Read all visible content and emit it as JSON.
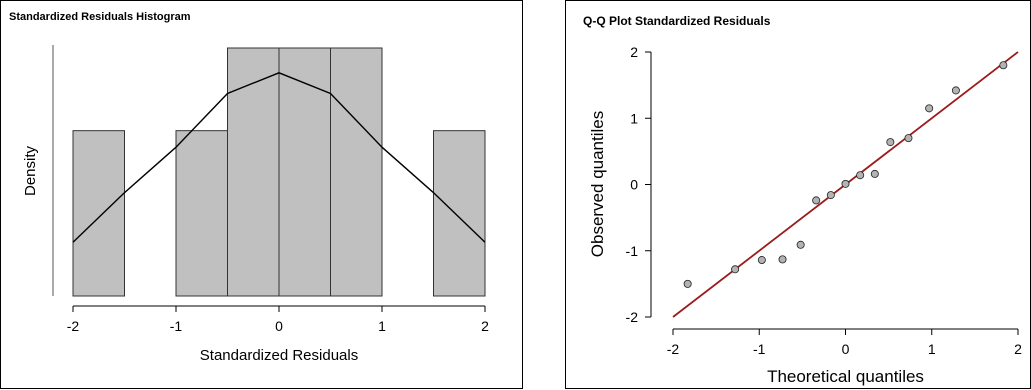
{
  "chart_data": [
    {
      "type": "bar",
      "title": "Standardized Residuals Histogram",
      "xlabel": "Standardized Residuals",
      "ylabel": "Density",
      "xlim": [
        -2,
        2
      ],
      "ylim": [
        0,
        0.6
      ],
      "x_ticks": [
        "-2",
        "-1",
        "0",
        "1",
        "2"
      ],
      "bins": [
        {
          "x0": -2.0,
          "x1": -1.5,
          "density": 0.4
        },
        {
          "x0": -1.5,
          "x1": -1.0,
          "density": 0.0
        },
        {
          "x0": -1.0,
          "x1": -0.5,
          "density": 0.4
        },
        {
          "x0": -0.5,
          "x1": 0.0,
          "density": 0.6
        },
        {
          "x0": 0.0,
          "x1": 0.5,
          "density": 0.6
        },
        {
          "x0": 0.5,
          "x1": 1.0,
          "density": 0.6
        },
        {
          "x0": 1.0,
          "x1": 1.5,
          "density": 0.0
        },
        {
          "x0": 1.5,
          "x1": 2.0,
          "density": 0.4
        }
      ],
      "density_curve": {
        "x": [
          -2.0,
          -1.5,
          -1.0,
          -0.5,
          0.0,
          0.5,
          1.0,
          1.5,
          2.0
        ],
        "y": [
          0.13,
          0.25,
          0.36,
          0.49,
          0.54,
          0.49,
          0.36,
          0.25,
          0.13
        ]
      },
      "bar_color": "#c0c0c0",
      "curve_color": "#000000",
      "grid": false
    },
    {
      "type": "scatter",
      "title": "Q-Q Plot Standardized Residuals",
      "xlabel": "Theoretical quantiles",
      "ylabel": "Observed quantiles",
      "xlim": [
        -2,
        2
      ],
      "ylim": [
        -2,
        2
      ],
      "x_ticks": [
        "-2",
        "-1",
        "0",
        "1",
        "2"
      ],
      "y_ticks": [
        "-2",
        "-1",
        "0",
        "1",
        "2"
      ],
      "points": {
        "x": [
          -1.83,
          -1.28,
          -0.97,
          -0.73,
          -0.52,
          -0.34,
          -0.17,
          0.0,
          0.17,
          0.34,
          0.52,
          0.73,
          0.97,
          1.28,
          1.83
        ],
        "y": [
          -1.5,
          -1.28,
          -1.14,
          -1.13,
          -0.91,
          -0.24,
          -0.16,
          0.01,
          0.14,
          0.16,
          0.64,
          0.7,
          1.15,
          1.42,
          1.8
        ]
      },
      "reference_line": {
        "x": [
          -2,
          2
        ],
        "y": [
          -2,
          2
        ],
        "color": "#9b1c1c"
      },
      "point_color": "#b3b3b3",
      "grid": false
    }
  ]
}
